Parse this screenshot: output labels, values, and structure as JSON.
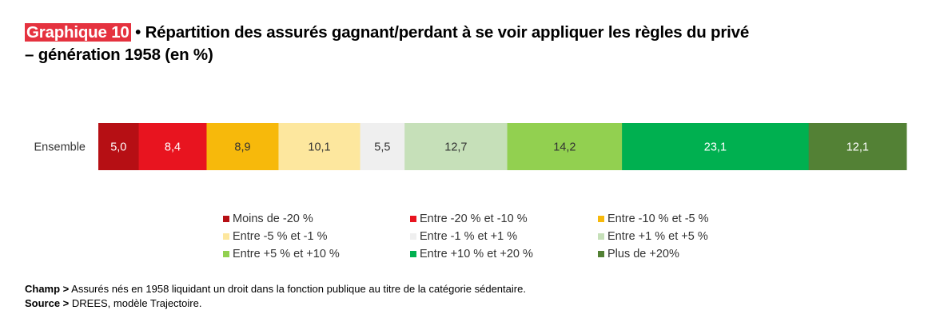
{
  "title": {
    "tag": "Graphique 10",
    "text": " • Répartition des assurés gagnant/perdant à se voir appliquer les règles du privé",
    "line2": "– génération 1958 (en %)"
  },
  "chart_data": {
    "type": "bar",
    "orientation": "horizontal",
    "stacked": true,
    "categories": [
      "Ensemble"
    ],
    "xlim": [
      0,
      100
    ],
    "grid": false,
    "legend_position": "bottom",
    "series": [
      {
        "name": "Moins de -20 %",
        "values": [
          5.0
        ],
        "label": "5,0",
        "color": "#b60f14",
        "label_color": "#ffffff"
      },
      {
        "name": "Entre -20 % et -10 %",
        "values": [
          8.4
        ],
        "label": "8,4",
        "color": "#e8141f",
        "label_color": "#ffffff"
      },
      {
        "name": "Entre -10 % et -5 %",
        "values": [
          8.9
        ],
        "label": "8,9",
        "color": "#f7b90b",
        "label_color": "#333333"
      },
      {
        "name": "Entre -5 % et -1 %",
        "values": [
          10.1
        ],
        "label": "10,1",
        "color": "#fde79e",
        "label_color": "#333333"
      },
      {
        "name": "Entre -1 % et +1 %",
        "values": [
          5.5
        ],
        "label": "5,5",
        "color": "#efefef",
        "label_color": "#333333"
      },
      {
        "name": "Entre +1 % et +5 %",
        "values": [
          12.7
        ],
        "label": "12,7",
        "color": "#c6e0b9",
        "label_color": "#333333"
      },
      {
        "name": "Entre +5 % et +10 %",
        "values": [
          14.2
        ],
        "label": "14,2",
        "color": "#92d050",
        "label_color": "#333333"
      },
      {
        "name": "Entre +10 % et +20 %",
        "values": [
          23.1
        ],
        "label": "23,1",
        "color": "#00b050",
        "label_color": "#ffffff"
      },
      {
        "name": "Plus de +20%",
        "values": [
          12.1
        ],
        "label": "12,1",
        "color": "#538135",
        "label_color": "#ffffff"
      }
    ]
  },
  "notes": {
    "champ_label": "Champ >",
    "champ_text": " Assurés nés en 1958 liquidant un droit dans la fonction publique au titre de la catégorie sédentaire.",
    "source_label": "Source >",
    "source_text": " DREES, modèle Trajectoire."
  }
}
